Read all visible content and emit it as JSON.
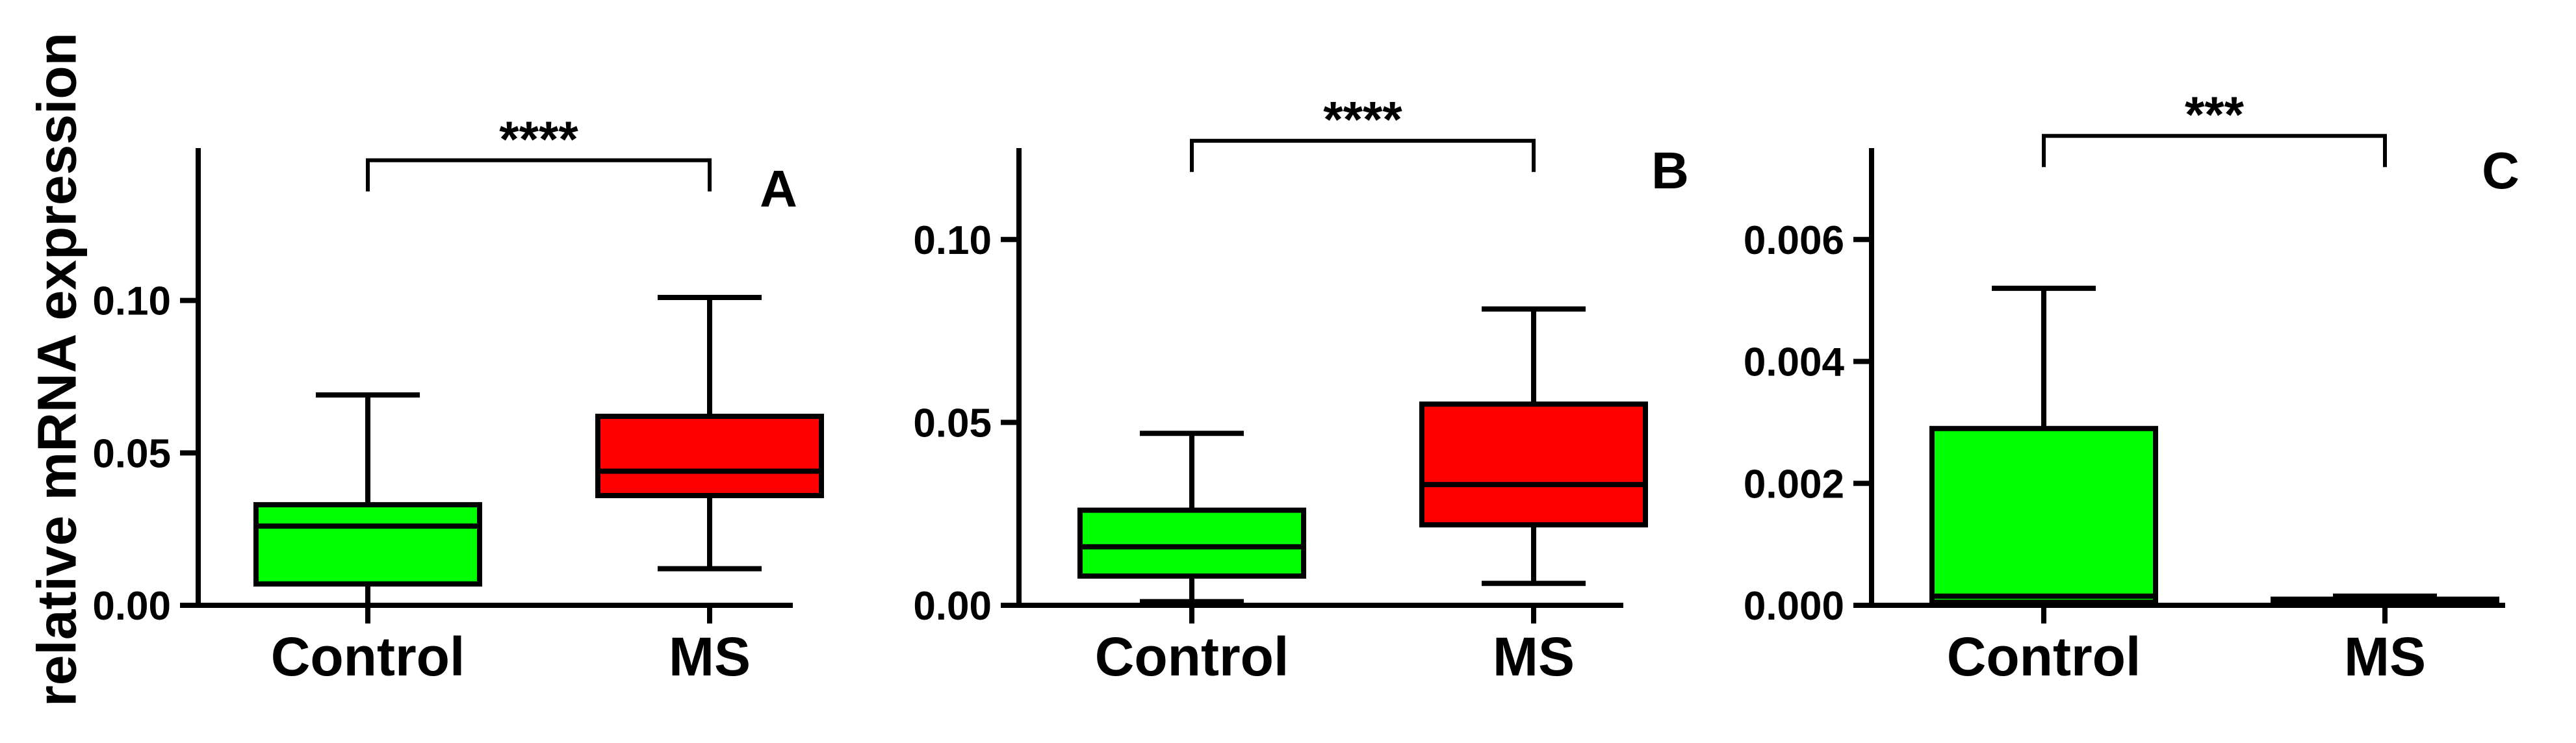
{
  "figure": {
    "ylabel": "relative mRNA expression"
  },
  "chart_data": [
    {
      "type": "box",
      "panel_label": "A",
      "categories": [
        "Control",
        "MS"
      ],
      "ylim": [
        0,
        0.15
      ],
      "yticks": [
        {
          "value": 0.0,
          "label": "0.00"
        },
        {
          "value": 0.05,
          "label": "0.05"
        },
        {
          "value": 0.1,
          "label": "0.10"
        }
      ],
      "boxes": [
        {
          "category": "Control",
          "min": 0.0,
          "q1": 0.007,
          "median": 0.026,
          "q3": 0.033,
          "max": 0.069,
          "color": "#00ff00"
        },
        {
          "category": "MS",
          "min": 0.012,
          "q1": 0.036,
          "median": 0.044,
          "q3": 0.062,
          "max": 0.101,
          "color": "#ff0000"
        }
      ],
      "significance": {
        "text": "****",
        "from": "Control",
        "to": "MS",
        "y": 0.146
      }
    },
    {
      "type": "box",
      "panel_label": "B",
      "categories": [
        "Control",
        "MS"
      ],
      "ylim": [
        0,
        0.125
      ],
      "yticks": [
        {
          "value": 0.0,
          "label": "0.00"
        },
        {
          "value": 0.05,
          "label": "0.05"
        },
        {
          "value": 0.1,
          "label": "0.10"
        }
      ],
      "boxes": [
        {
          "category": "Control",
          "min": 0.001,
          "q1": 0.008,
          "median": 0.016,
          "q3": 0.026,
          "max": 0.047,
          "color": "#00ff00"
        },
        {
          "category": "MS",
          "min": 0.006,
          "q1": 0.022,
          "median": 0.033,
          "q3": 0.055,
          "max": 0.081,
          "color": "#ff0000"
        }
      ],
      "significance": {
        "text": "****",
        "from": "Control",
        "to": "MS",
        "y": 0.127
      }
    },
    {
      "type": "box",
      "panel_label": "C",
      "categories": [
        "Control",
        "MS"
      ],
      "ylim": [
        0,
        0.0075
      ],
      "yticks": [
        {
          "value": 0.0,
          "label": "0.000"
        },
        {
          "value": 0.002,
          "label": "0.002"
        },
        {
          "value": 0.004,
          "label": "0.004"
        },
        {
          "value": 0.006,
          "label": "0.006"
        }
      ],
      "boxes": [
        {
          "category": "Control",
          "min": 0.0,
          "q1": 5e-05,
          "median": 0.00015,
          "q3": 0.0029,
          "max": 0.0052,
          "color": "#00ff00"
        },
        {
          "category": "MS",
          "min": 0.0,
          "q1": 3e-05,
          "median": 6e-05,
          "q3": 0.0001,
          "max": 0.00015,
          "color": "#ff0000"
        }
      ],
      "significance": {
        "text": "***",
        "from": "Control",
        "to": "MS",
        "y": 0.0077
      }
    }
  ]
}
